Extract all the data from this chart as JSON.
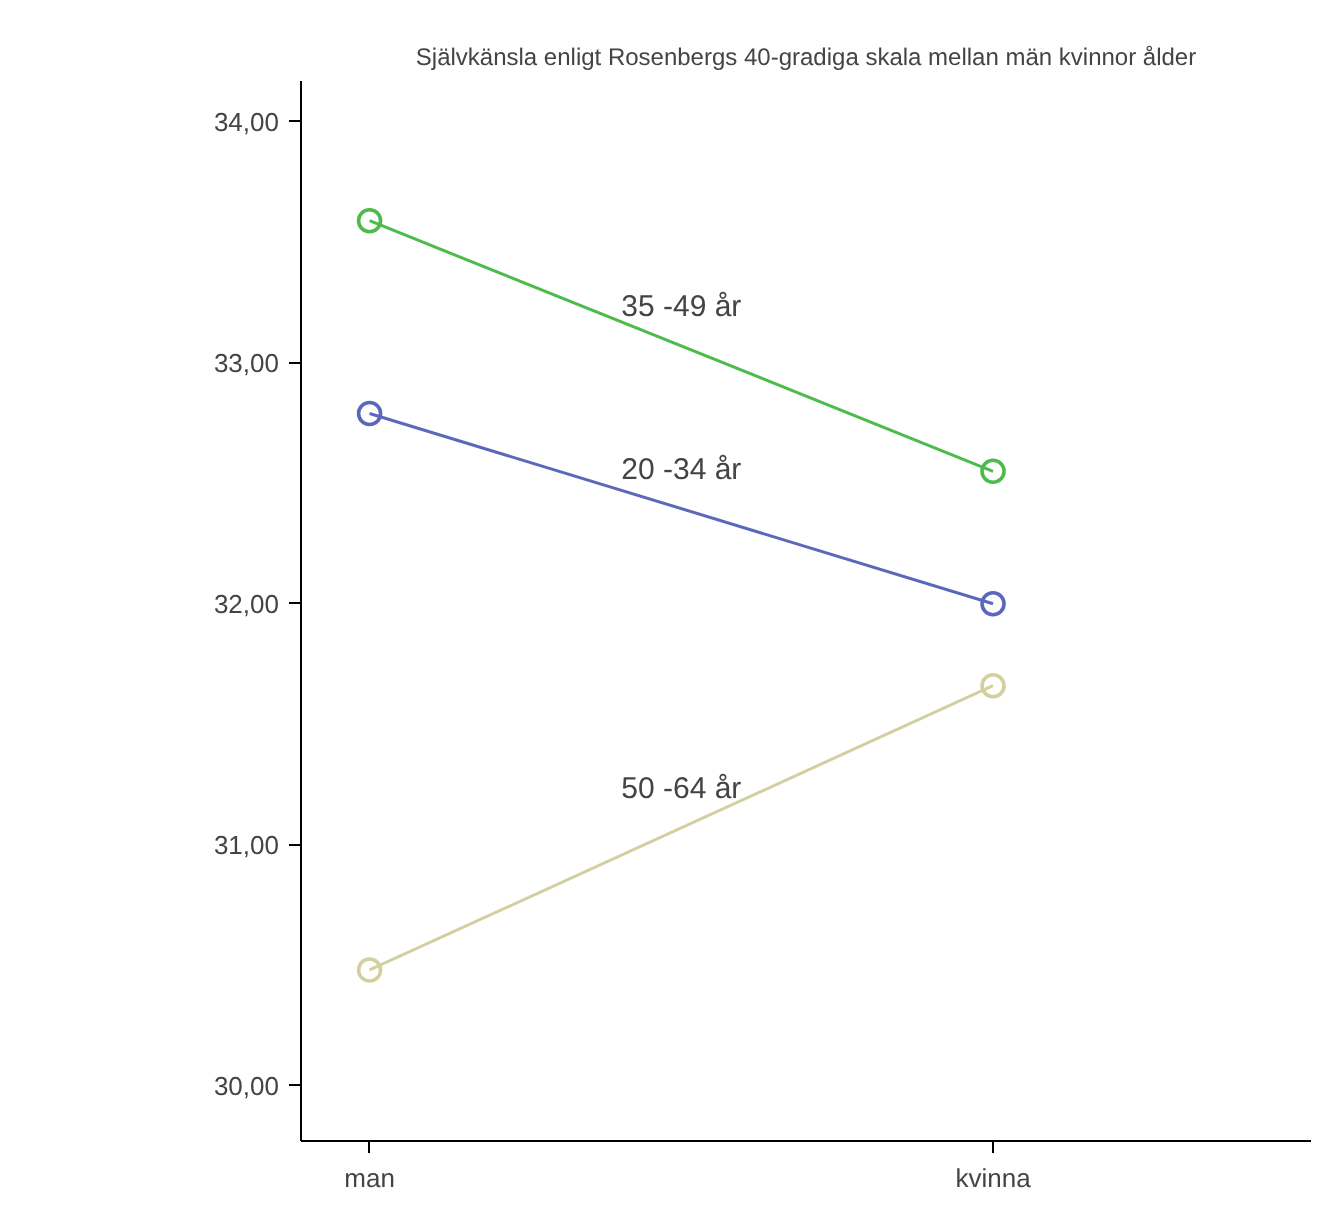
{
  "chart_data": {
    "type": "line",
    "title": "Självkänsla enligt Rosenbergs 40-gradiga skala mellan män kvinnor ålder",
    "categories": [
      "man",
      "kvinna"
    ],
    "series": [
      {
        "name": "35 -49 år",
        "color": "#4cbb4c",
        "values": [
          33.59,
          32.55
        ]
      },
      {
        "name": "20 -34 år",
        "color": "#5a67bb",
        "values": [
          32.79,
          32.0
        ]
      },
      {
        "name": "50 -64 år",
        "color": "#d3cf9f",
        "values": [
          30.48,
          31.66
        ]
      }
    ],
    "ylim": [
      29.77,
      34.17
    ],
    "yticks": [
      {
        "value": 30,
        "label": "30,00"
      },
      {
        "value": 31,
        "label": "31,00"
      },
      {
        "value": 32,
        "label": "32,00"
      },
      {
        "value": 33,
        "label": "33,00"
      },
      {
        "value": 34,
        "label": "34,00"
      }
    ],
    "grid": false,
    "marker": "circle",
    "line_style": "solid"
  }
}
